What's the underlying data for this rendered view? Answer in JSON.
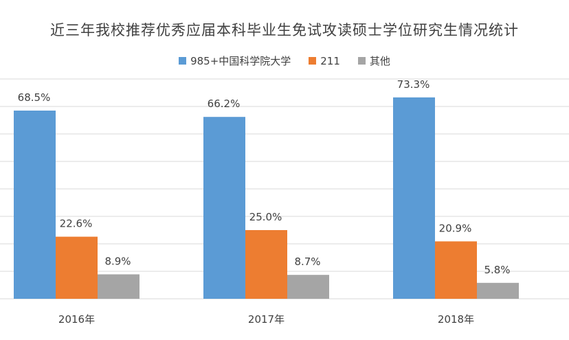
{
  "chart_data": {
    "type": "bar",
    "title": "近三年我校推荐优秀应届本科毕业生免试攻读硕士学位研究生情况统计",
    "categories": [
      "2016年",
      "2017年",
      "2018年"
    ],
    "series": [
      {
        "name": "985+中国科学院大学",
        "color": "#5b9bd5",
        "values": [
          68.5,
          66.2,
          73.3
        ],
        "labels": [
          "68.5%",
          "66.2%",
          "73.3%"
        ]
      },
      {
        "name": "211",
        "color": "#ed7d31",
        "values": [
          22.6,
          25.0,
          20.9
        ],
        "labels": [
          "22.6%",
          "25.0%",
          "20.9%"
        ]
      },
      {
        "name": "其他",
        "color": "#a5a5a5",
        "values": [
          8.9,
          8.7,
          5.8
        ],
        "labels": [
          "8.9%",
          "8.7%",
          "5.8%"
        ]
      }
    ],
    "ylim": [
      0,
      80
    ],
    "grid": true,
    "legend_position": "top"
  }
}
